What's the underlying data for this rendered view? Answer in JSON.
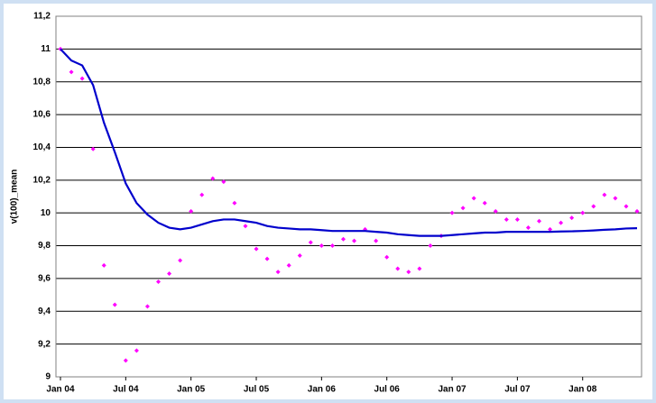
{
  "chart_data": {
    "type": "scatter-line",
    "y_label": "v(100)_mean",
    "categories": [
      "Jan 04",
      null,
      null,
      null,
      null,
      null,
      "Jul 04",
      null,
      null,
      null,
      null,
      null,
      "Jan 05",
      null,
      null,
      null,
      null,
      null,
      "Jul 05",
      null,
      null,
      null,
      null,
      null,
      "Jan 06",
      null,
      null,
      null,
      null,
      null,
      "Jul 06",
      null,
      null,
      null,
      null,
      null,
      "Jan 07",
      null,
      null,
      null,
      null,
      null,
      "Jul 07",
      null,
      null,
      null,
      null,
      null,
      "Jan 08",
      null,
      null,
      null,
      null,
      null
    ],
    "series": [
      {
        "kind": "points",
        "color": "#ff00ff",
        "values": [
          11.0,
          10.86,
          10.82,
          10.39,
          9.68,
          9.44,
          9.1,
          9.16,
          9.43,
          9.58,
          9.63,
          9.71,
          10.01,
          10.11,
          10.21,
          10.19,
          10.06,
          9.92,
          9.78,
          9.72,
          9.64,
          9.68,
          9.74,
          9.82,
          9.8,
          9.8,
          9.84,
          9.83,
          9.9,
          9.83,
          9.73,
          9.66,
          9.64,
          9.66,
          9.8,
          9.86,
          10.0,
          10.03,
          10.09,
          10.06,
          10.01,
          9.96,
          9.96,
          9.91,
          9.95,
          9.9,
          9.94,
          9.97,
          10.0,
          10.04,
          10.11,
          10.09,
          10.04,
          10.01
        ]
      },
      {
        "kind": "line",
        "color": "#0000cc",
        "values": [
          11.0,
          10.93,
          10.9,
          10.78,
          10.55,
          10.37,
          10.18,
          10.06,
          9.99,
          9.94,
          9.91,
          9.9,
          9.91,
          9.93,
          9.95,
          9.96,
          9.96,
          9.95,
          9.94,
          9.92,
          9.91,
          9.905,
          9.9,
          9.9,
          9.895,
          9.89,
          9.89,
          9.89,
          9.89,
          9.885,
          9.88,
          9.87,
          9.865,
          9.86,
          9.86,
          9.86,
          9.865,
          9.87,
          9.875,
          9.88,
          9.88,
          9.885,
          9.885,
          9.885,
          9.885,
          9.885,
          9.887,
          9.888,
          9.89,
          9.893,
          9.897,
          9.9,
          9.905,
          9.907
        ]
      }
    ],
    "ylim": [
      9,
      11.2
    ],
    "yticks": [
      9,
      {
        "value": 9.2,
        "label": "9,2"
      },
      {
        "value": 9.4,
        "label": "9,4"
      },
      {
        "value": 9.6,
        "label": "9,6"
      },
      {
        "value": 9.8,
        "label": "9,8"
      },
      10,
      {
        "value": 10.2,
        "label": "10,2"
      },
      {
        "value": 10.4,
        "label": "10,4"
      },
      {
        "value": 10.6,
        "label": "10,6"
      },
      {
        "value": 10.8,
        "label": "10,8"
      },
      11,
      {
        "value": 11.2,
        "label": "11,2"
      }
    ],
    "grid": true
  }
}
